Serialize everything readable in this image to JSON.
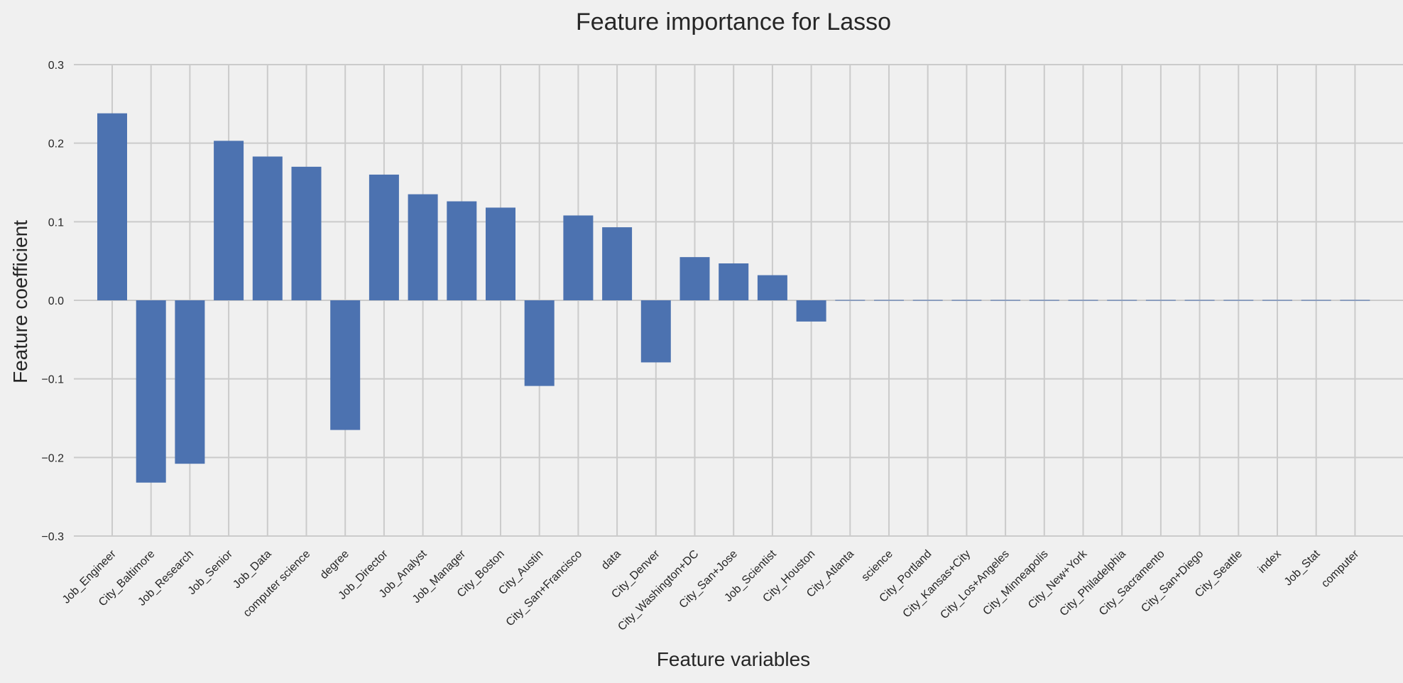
{
  "chart_data": {
    "type": "bar",
    "title": "Feature importance for Lasso",
    "xlabel": "Feature variables",
    "ylabel": "Feature coefficient",
    "ylim": [
      -0.3,
      0.3
    ],
    "yticks": [
      "0.3",
      "0.2",
      "0.1",
      "0.0",
      "−0.1",
      "−0.2",
      "−0.3"
    ],
    "ytick_values": [
      0.3,
      0.2,
      0.1,
      0.0,
      -0.1,
      -0.2,
      -0.3
    ],
    "grid": true,
    "bar_color": "#4c72b0",
    "categories": [
      "Job_Engineer",
      "City_Baltimore",
      "Job_Research",
      "Job_Senior",
      "Job_Data",
      "computer science",
      "degree",
      "Job_Director",
      "Job_Analyst",
      "Job_Manager",
      "City_Boston",
      "City_Austin",
      "City_San+Francisco",
      "data",
      "City_Denver",
      "City_Washington+DC",
      "City_San+Jose",
      "Job_Scientist",
      "City_Houston",
      "City_Atlanta",
      "science",
      "City_Portland",
      "City_Kansas+City",
      "City_Los+Angeles",
      "City_Minneapolis",
      "City_New+York",
      "City_Philadelphia",
      "City_Sacramento",
      "City_San+Diego",
      "City_Seattle",
      "index",
      "Job_Stat",
      "computer"
    ],
    "values": [
      0.238,
      -0.232,
      -0.208,
      0.203,
      0.183,
      0.17,
      -0.165,
      0.16,
      0.135,
      0.126,
      0.118,
      -0.109,
      0.108,
      0.093,
      -0.079,
      0.055,
      0.047,
      0.032,
      -0.027,
      0.0,
      0.0,
      0.0,
      0.0,
      0.0,
      0.0,
      0.0,
      0.0,
      0.0,
      0.0,
      0.0,
      0.0,
      0.0,
      0.0
    ]
  }
}
